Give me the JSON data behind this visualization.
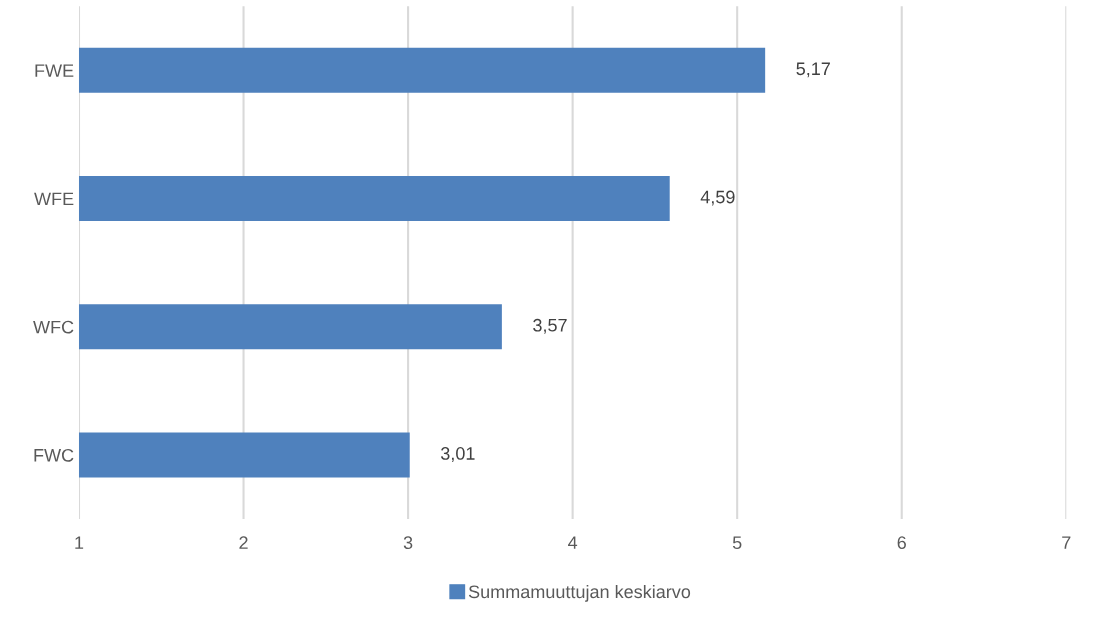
{
  "chart_data": {
    "type": "bar",
    "orientation": "horizontal",
    "categories": [
      "FWE",
      "WFE",
      "WFC",
      "FWC"
    ],
    "series": [
      {
        "name": "Summamuuttujan keskiarvo",
        "color": "#4f81bd",
        "values": [
          5.17,
          4.59,
          3.57,
          3.01
        ],
        "value_labels": [
          "5,17",
          "4,59",
          "3,57",
          "3,01"
        ]
      }
    ],
    "xlim": [
      1,
      7
    ],
    "xticks": [
      1,
      2,
      3,
      4,
      5,
      6,
      7
    ],
    "grid": "x",
    "legend": "bottom"
  }
}
